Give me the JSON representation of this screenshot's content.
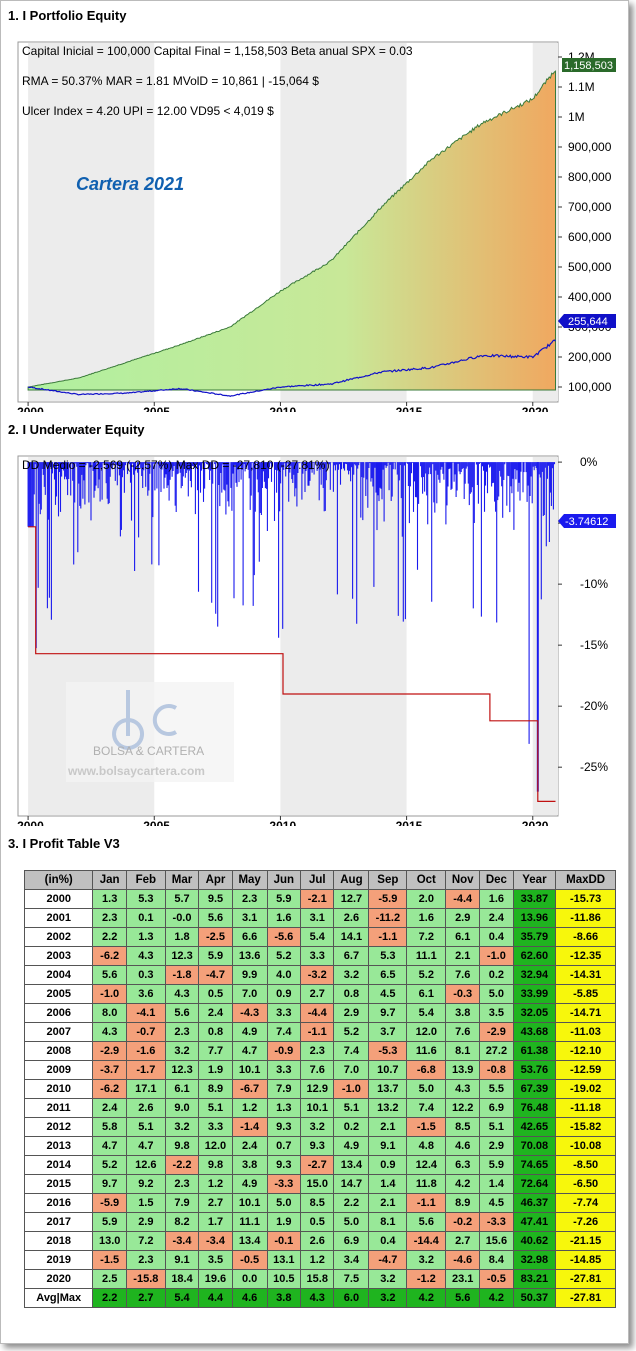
{
  "sections": {
    "equity_title": "1. I Portfolio Equity",
    "underwater_title": "2. I Underwater Equity",
    "table_title": "3. I Profit Table V3"
  },
  "equity": {
    "stats_line1": "Capital Inicial = 100,000   Capital Final = 1,158,503   Beta anual SPX = 0.03",
    "stats_line2": "RMA = 50.37%   MAR = 1.81   MVolD = 10,861 | -15,064 $",
    "stats_line3": "Ulcer Index = 4.20   UPI = 12.00   VD95 < 4,019 $",
    "chart_name": "Cartera 2021",
    "last_value_label": "1,158,503",
    "spx_last_label": "255,644",
    "y_ticks": [
      "1.2M",
      "1.1M",
      "1M",
      "900,000",
      "800,000",
      "700,000",
      "600,000",
      "500,000",
      "400,000",
      "300,000",
      "200,000",
      "100,000"
    ],
    "x_ticks": [
      "2000",
      "2005",
      "2010",
      "2015",
      "2020"
    ]
  },
  "underwater": {
    "stats": "DD Medio = -2,569 (-2.57%)      Max DD = -27,810 (-27.81%)",
    "last_value_label": "-3.74612",
    "y_ticks": [
      "0%",
      "-5%",
      "-10%",
      "-15%",
      "-20%",
      "-25%"
    ],
    "x_ticks": [
      "2000",
      "2005",
      "2010",
      "2015",
      "2020"
    ],
    "watermark_brand": "BOLSA & CARTERA",
    "watermark_url": "www.bolsaycartera.com"
  },
  "chart_data": [
    {
      "type": "area",
      "title": "Cartera 2021",
      "x": [
        2000,
        2002,
        2004,
        2006,
        2008,
        2010,
        2012,
        2014,
        2016,
        2018,
        2020,
        2020.9
      ],
      "series": [
        {
          "values": [
            100000,
            130000,
            185000,
            240000,
            300000,
            420000,
            520000,
            700000,
            860000,
            980000,
            1060000,
            1158503
          ]
        },
        {
          "values": [
            100000,
            75000,
            80000,
            95000,
            70000,
            100000,
            110000,
            150000,
            165000,
            205000,
            200000,
            255644
          ]
        }
      ],
      "ylim": [
        50000,
        1250000
      ],
      "xlim": [
        1999.6,
        2021.0
      ]
    },
    {
      "type": "area",
      "x": [
        2000,
        2000.3,
        2003,
        2006,
        2008.5,
        2009.5,
        2010.1,
        2013,
        2016,
        2018.3,
        2018.9,
        2020.2,
        2020.3,
        2020.9
      ],
      "series": [
        {
          "values": [
            -5.3,
            -15.7,
            -8.0,
            -12.5,
            -14.5,
            -10.0,
            -19.0,
            -15.8,
            -12.0,
            -21.2,
            -14.9,
            -27.8,
            -12.0,
            -3.75
          ]
        },
        {
          "values": [
            -5.3,
            -15.7,
            -15.7,
            -15.7,
            -15.7,
            -15.7,
            -19.0,
            -19.0,
            -19.0,
            -21.2,
            -21.2,
            -27.8,
            -27.8,
            -27.8
          ]
        }
      ],
      "ylim": [
        -29,
        0.5
      ],
      "xlim": [
        1999.6,
        2021.0
      ]
    },
    {
      "type": "table",
      "columns": [
        "(in%)",
        "Jan",
        "Feb",
        "Mar",
        "Apr",
        "May",
        "Jun",
        "Jul",
        "Aug",
        "Sep",
        "Oct",
        "Nov",
        "Dec",
        "Year",
        "MaxDD"
      ],
      "rows": [
        [
          "2000",
          "1.3",
          "5.3",
          "5.7",
          "9.5",
          "2.3",
          "5.9",
          "-2.1",
          "12.7",
          "-5.9",
          "2.0",
          "-4.4",
          "1.6",
          "33.87",
          "-15.73"
        ],
        [
          "2001",
          "2.3",
          "0.1",
          "-0.0",
          "5.6",
          "3.1",
          "1.6",
          "3.1",
          "2.6",
          "-11.2",
          "1.6",
          "2.9",
          "2.4",
          "13.96",
          "-11.86"
        ],
        [
          "2002",
          "2.2",
          "1.3",
          "1.8",
          "-2.5",
          "6.6",
          "-5.6",
          "5.4",
          "14.1",
          "-1.1",
          "7.2",
          "6.1",
          "0.4",
          "35.79",
          "-8.66"
        ],
        [
          "2003",
          "-6.2",
          "4.3",
          "12.3",
          "5.9",
          "13.6",
          "5.2",
          "3.3",
          "6.7",
          "5.3",
          "11.1",
          "2.1",
          "-1.0",
          "62.60",
          "-12.35"
        ],
        [
          "2004",
          "5.6",
          "0.3",
          "-1.8",
          "-4.7",
          "9.9",
          "4.0",
          "-3.2",
          "3.2",
          "6.5",
          "5.2",
          "7.6",
          "0.2",
          "32.94",
          "-14.31"
        ],
        [
          "2005",
          "-1.0",
          "3.6",
          "4.3",
          "0.5",
          "7.0",
          "0.9",
          "2.7",
          "0.8",
          "4.5",
          "6.1",
          "-0.3",
          "5.0",
          "33.99",
          "-5.85"
        ],
        [
          "2006",
          "8.0",
          "-4.1",
          "5.6",
          "2.4",
          "-4.3",
          "3.3",
          "-4.4",
          "2.9",
          "9.7",
          "5.4",
          "3.8",
          "3.5",
          "32.05",
          "-14.71"
        ],
        [
          "2007",
          "4.3",
          "-0.7",
          "2.3",
          "0.8",
          "4.9",
          "7.4",
          "-1.1",
          "5.2",
          "3.7",
          "12.0",
          "7.6",
          "-2.9",
          "43.68",
          "-11.03"
        ],
        [
          "2008",
          "-2.9",
          "-1.6",
          "3.2",
          "7.7",
          "4.7",
          "-0.9",
          "2.3",
          "7.4",
          "-5.3",
          "11.6",
          "8.1",
          "27.2",
          "61.38",
          "-12.10"
        ],
        [
          "2009",
          "-3.7",
          "-1.7",
          "12.3",
          "1.9",
          "10.1",
          "3.3",
          "7.6",
          "7.0",
          "10.7",
          "-6.8",
          "13.9",
          "-0.8",
          "53.76",
          "-12.59"
        ],
        [
          "2010",
          "-6.2",
          "17.1",
          "6.1",
          "8.9",
          "-6.7",
          "7.9",
          "12.9",
          "-1.0",
          "13.7",
          "5.0",
          "4.3",
          "5.5",
          "67.39",
          "-19.02"
        ],
        [
          "2011",
          "2.4",
          "2.6",
          "9.0",
          "5.1",
          "1.2",
          "1.3",
          "10.1",
          "5.1",
          "13.2",
          "7.4",
          "12.2",
          "6.9",
          "76.48",
          "-11.18"
        ],
        [
          "2012",
          "5.8",
          "5.1",
          "3.2",
          "3.3",
          "-1.4",
          "9.3",
          "3.2",
          "0.2",
          "2.1",
          "-1.5",
          "8.5",
          "5.1",
          "42.65",
          "-15.82"
        ],
        [
          "2013",
          "4.7",
          "4.7",
          "9.8",
          "12.0",
          "2.4",
          "0.7",
          "9.3",
          "4.9",
          "9.1",
          "4.8",
          "4.6",
          "2.9",
          "70.08",
          "-10.08"
        ],
        [
          "2014",
          "5.2",
          "12.6",
          "-2.2",
          "9.8",
          "3.8",
          "9.3",
          "-2.7",
          "13.4",
          "0.9",
          "12.4",
          "6.3",
          "5.9",
          "74.65",
          "-8.50"
        ],
        [
          "2015",
          "9.7",
          "9.2",
          "2.3",
          "1.2",
          "4.9",
          "-3.3",
          "15.0",
          "14.7",
          "1.4",
          "11.8",
          "4.2",
          "1.4",
          "72.64",
          "-6.50"
        ],
        [
          "2016",
          "-5.9",
          "1.5",
          "7.9",
          "2.7",
          "10.1",
          "5.0",
          "8.5",
          "2.2",
          "2.1",
          "-1.1",
          "8.9",
          "4.5",
          "46.37",
          "-7.74"
        ],
        [
          "2017",
          "5.9",
          "2.9",
          "8.2",
          "1.7",
          "11.1",
          "1.9",
          "0.5",
          "5.0",
          "8.1",
          "5.6",
          "-0.2",
          "-3.3",
          "47.41",
          "-7.26"
        ],
        [
          "2018",
          "13.0",
          "7.2",
          "-3.4",
          "-3.4",
          "13.4",
          "-0.1",
          "2.6",
          "6.9",
          "0.4",
          "-14.4",
          "2.7",
          "15.6",
          "40.62",
          "-21.15"
        ],
        [
          "2019",
          "-1.5",
          "2.3",
          "9.1",
          "3.5",
          "-0.5",
          "13.1",
          "1.2",
          "3.4",
          "-4.7",
          "3.2",
          "-4.6",
          "8.4",
          "32.98",
          "-14.85"
        ],
        [
          "2020",
          "2.5",
          "-15.8",
          "18.4",
          "19.6",
          "0.0",
          "10.5",
          "15.8",
          "7.5",
          "3.2",
          "-1.2",
          "23.1",
          "-0.5",
          "83.21",
          "-27.81"
        ]
      ],
      "footer": [
        "Avg|Max",
        "2.2",
        "2.7",
        "5.4",
        "4.4",
        "4.6",
        "3.8",
        "4.3",
        "6.0",
        "3.2",
        "4.2",
        "5.6",
        "4.2",
        "50.37",
        "-27.81"
      ]
    }
  ],
  "colors": {
    "equity_line": "#3a7a3a",
    "spx_line": "#1010c8",
    "dd_bars": "#1a1aee",
    "maxdd_line": "#c01010",
    "pos_cell": "#98e898",
    "neg_cell": "#f4a07a",
    "year_cell": "#1fb41f",
    "maxdd_cell": "#f7f70c",
    "title_blue": "#1060b0"
  }
}
